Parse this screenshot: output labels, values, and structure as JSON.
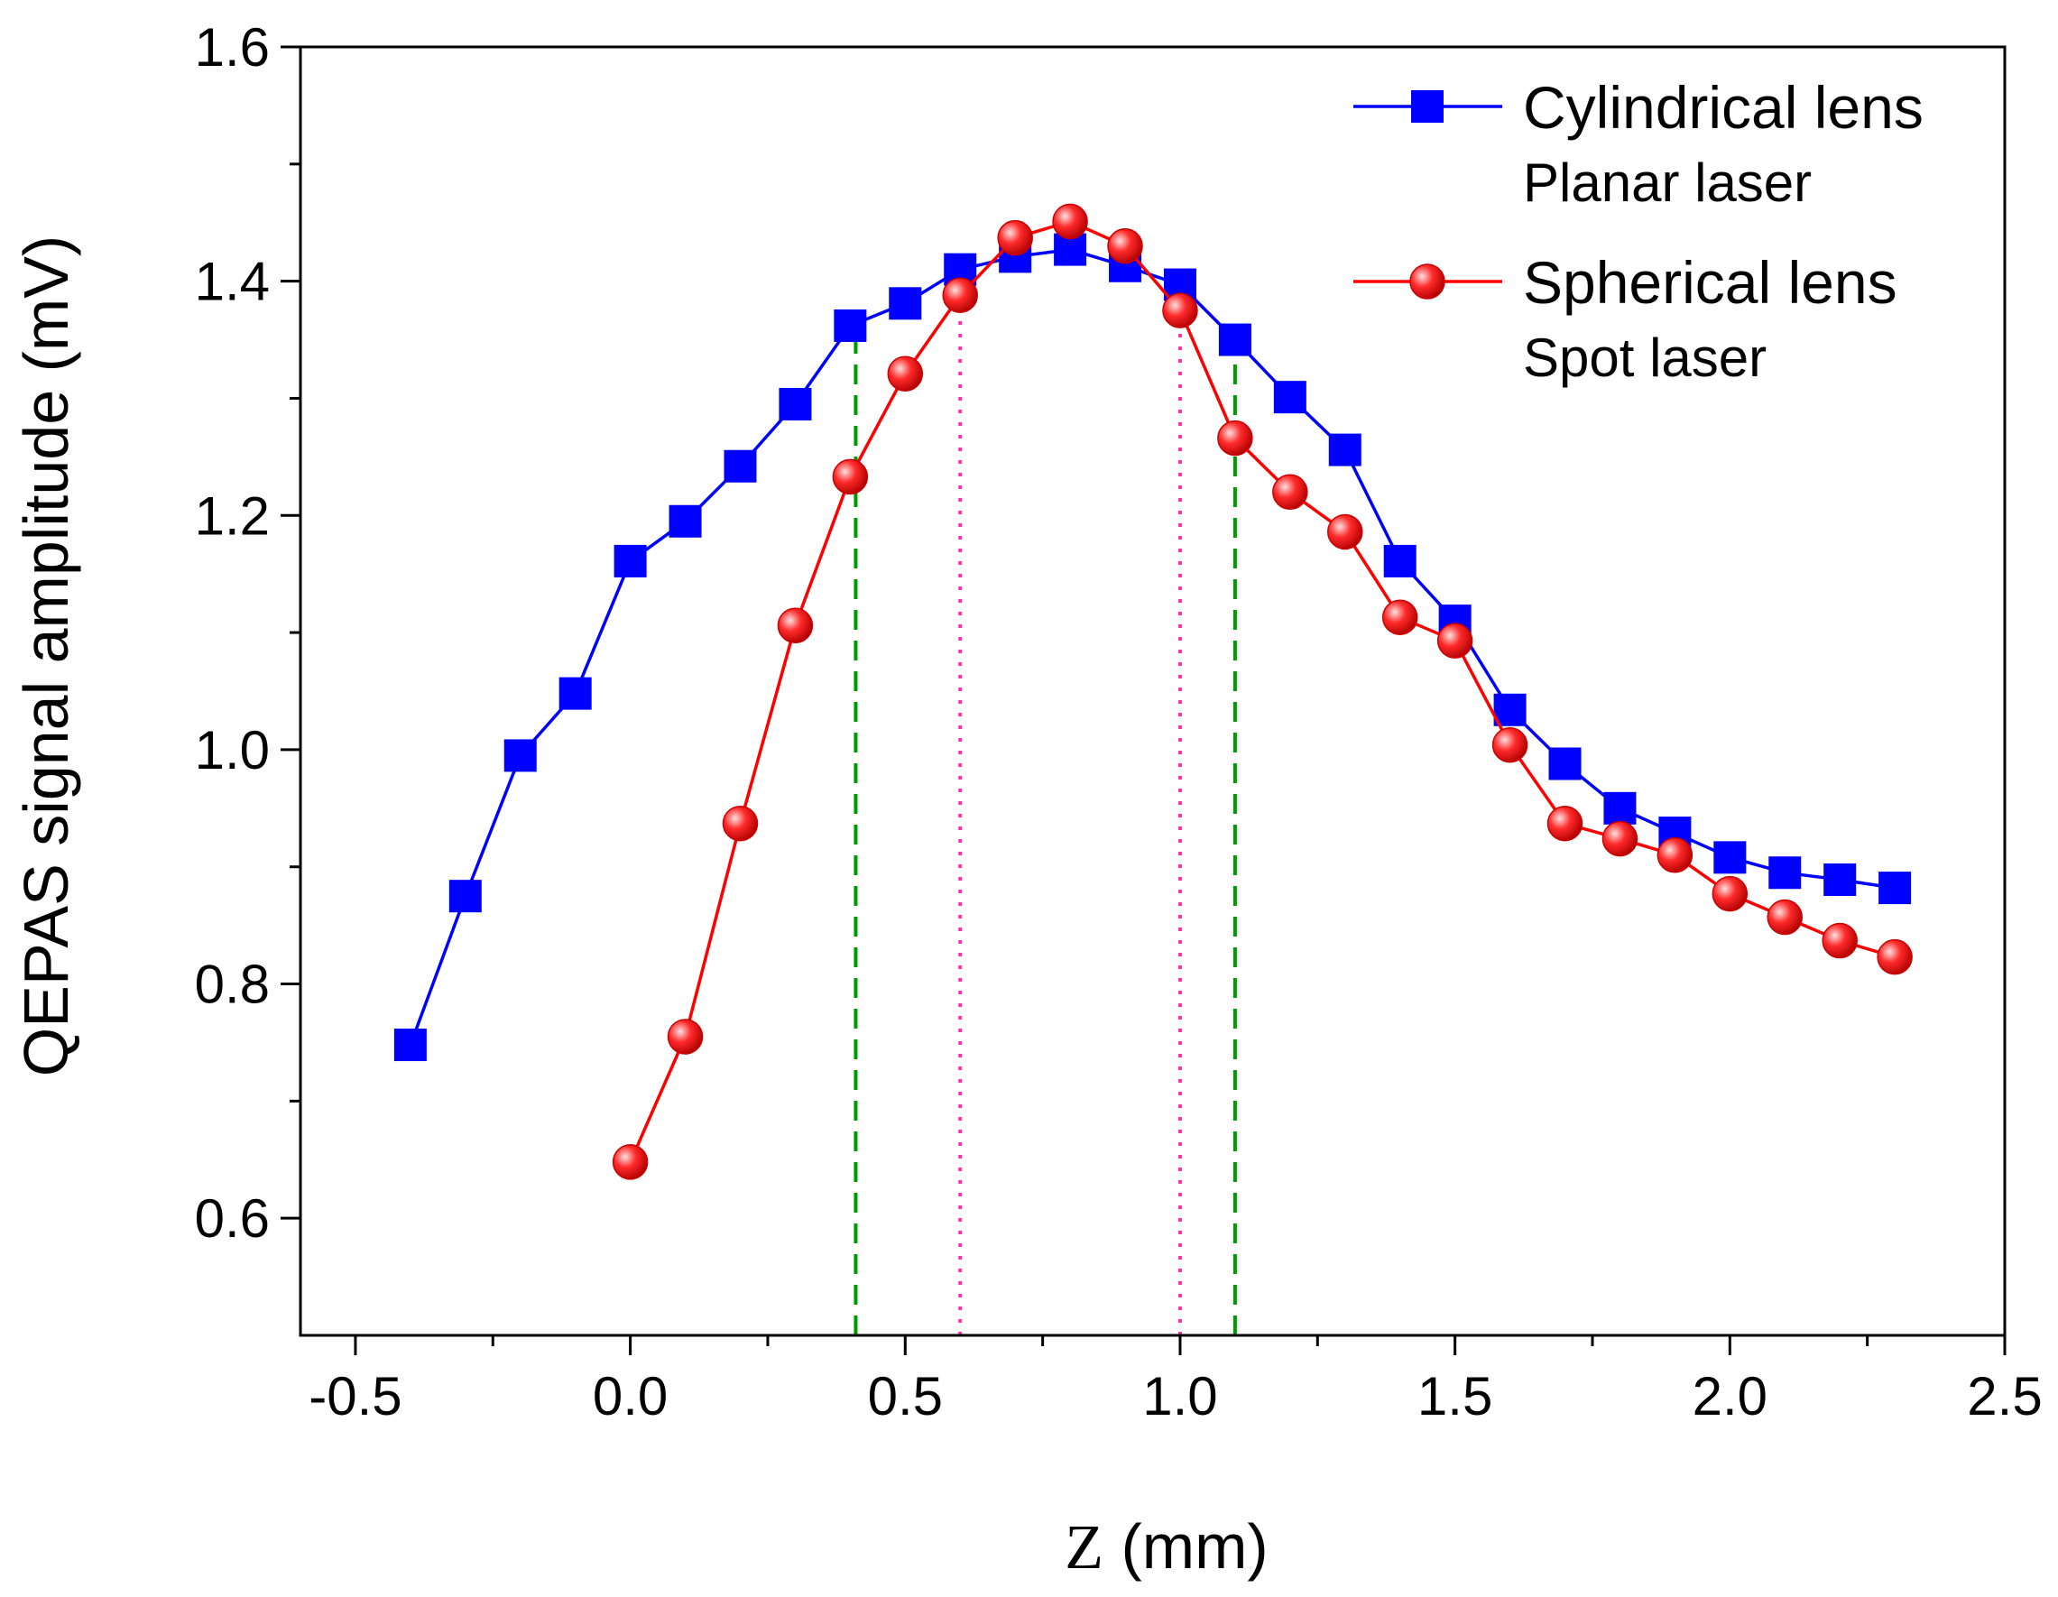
{
  "chart_data": {
    "type": "line",
    "title": "",
    "xlabel": "Z (mm)",
    "xlabel_symbol": "Z",
    "xlabel_unit": "(mm)",
    "ylabel": "QEPAS signal amplitude (mV)",
    "xlim": [
      -0.6,
      2.5
    ],
    "ylim": [
      0.5,
      1.6
    ],
    "xticks": [
      -0.5,
      0.0,
      0.5,
      1.0,
      1.5,
      2.0,
      2.5
    ],
    "xtick_labels": [
      "-0.5",
      "0.0",
      "0.5",
      "1.0",
      "1.5",
      "2.0",
      "2.5"
    ],
    "yticks": [
      0.6,
      0.8,
      1.0,
      1.2,
      1.4,
      1.6
    ],
    "ytick_labels": [
      "0.6",
      "0.8",
      "1.0",
      "1.2",
      "1.4",
      "1.6"
    ],
    "grid": false,
    "legend_position": "top-right",
    "series": [
      {
        "name": "Cylindrical lens",
        "subtitle": "Planar laser",
        "color": "#0000ff",
        "marker": "square",
        "x": [
          -0.4,
          -0.3,
          -0.2,
          -0.1,
          0.0,
          0.1,
          0.2,
          0.3,
          0.4,
          0.5,
          0.6,
          0.7,
          0.8,
          0.9,
          1.0,
          1.1,
          1.2,
          1.3,
          1.4,
          1.5,
          1.6,
          1.7,
          1.8,
          1.9,
          2.0,
          2.1,
          2.2,
          2.3
        ],
        "y": [
          0.748,
          0.875,
          0.995,
          1.048,
          1.161,
          1.195,
          1.242,
          1.295,
          1.362,
          1.381,
          1.41,
          1.421,
          1.427,
          1.413,
          1.397,
          1.35,
          1.301,
          1.256,
          1.161,
          1.11,
          1.034,
          0.988,
          0.95,
          0.929,
          0.908,
          0.895,
          0.889,
          0.882
        ]
      },
      {
        "name": "Spherical lens",
        "subtitle": "Spot laser",
        "color": "#ff0000",
        "marker": "circle",
        "x": [
          0.0,
          0.1,
          0.2,
          0.3,
          0.4,
          0.5,
          0.6,
          0.7,
          0.8,
          0.9,
          1.0,
          1.1,
          1.2,
          1.3,
          1.4,
          1.5,
          1.6,
          1.7,
          1.8,
          1.9,
          2.0,
          2.1,
          2.2,
          2.3
        ],
        "y": [
          0.648,
          0.755,
          0.937,
          1.106,
          1.233,
          1.321,
          1.388,
          1.437,
          1.451,
          1.43,
          1.375,
          1.266,
          1.22,
          1.186,
          1.113,
          1.093,
          1.004,
          0.937,
          0.924,
          0.91,
          0.877,
          0.857,
          0.837,
          0.823
        ]
      }
    ],
    "reference_lines": [
      {
        "x": 0.41,
        "color": "#009900",
        "style": "dashed",
        "y_top": 1.362
      },
      {
        "x": 0.6,
        "color": "#ff33aa",
        "style": "dotted",
        "y_top": 1.388
      },
      {
        "x": 1.0,
        "color": "#ff33aa",
        "style": "dotted",
        "y_top": 1.375
      },
      {
        "x": 1.1,
        "color": "#009900",
        "style": "dashed",
        "y_top": 1.35
      }
    ]
  }
}
